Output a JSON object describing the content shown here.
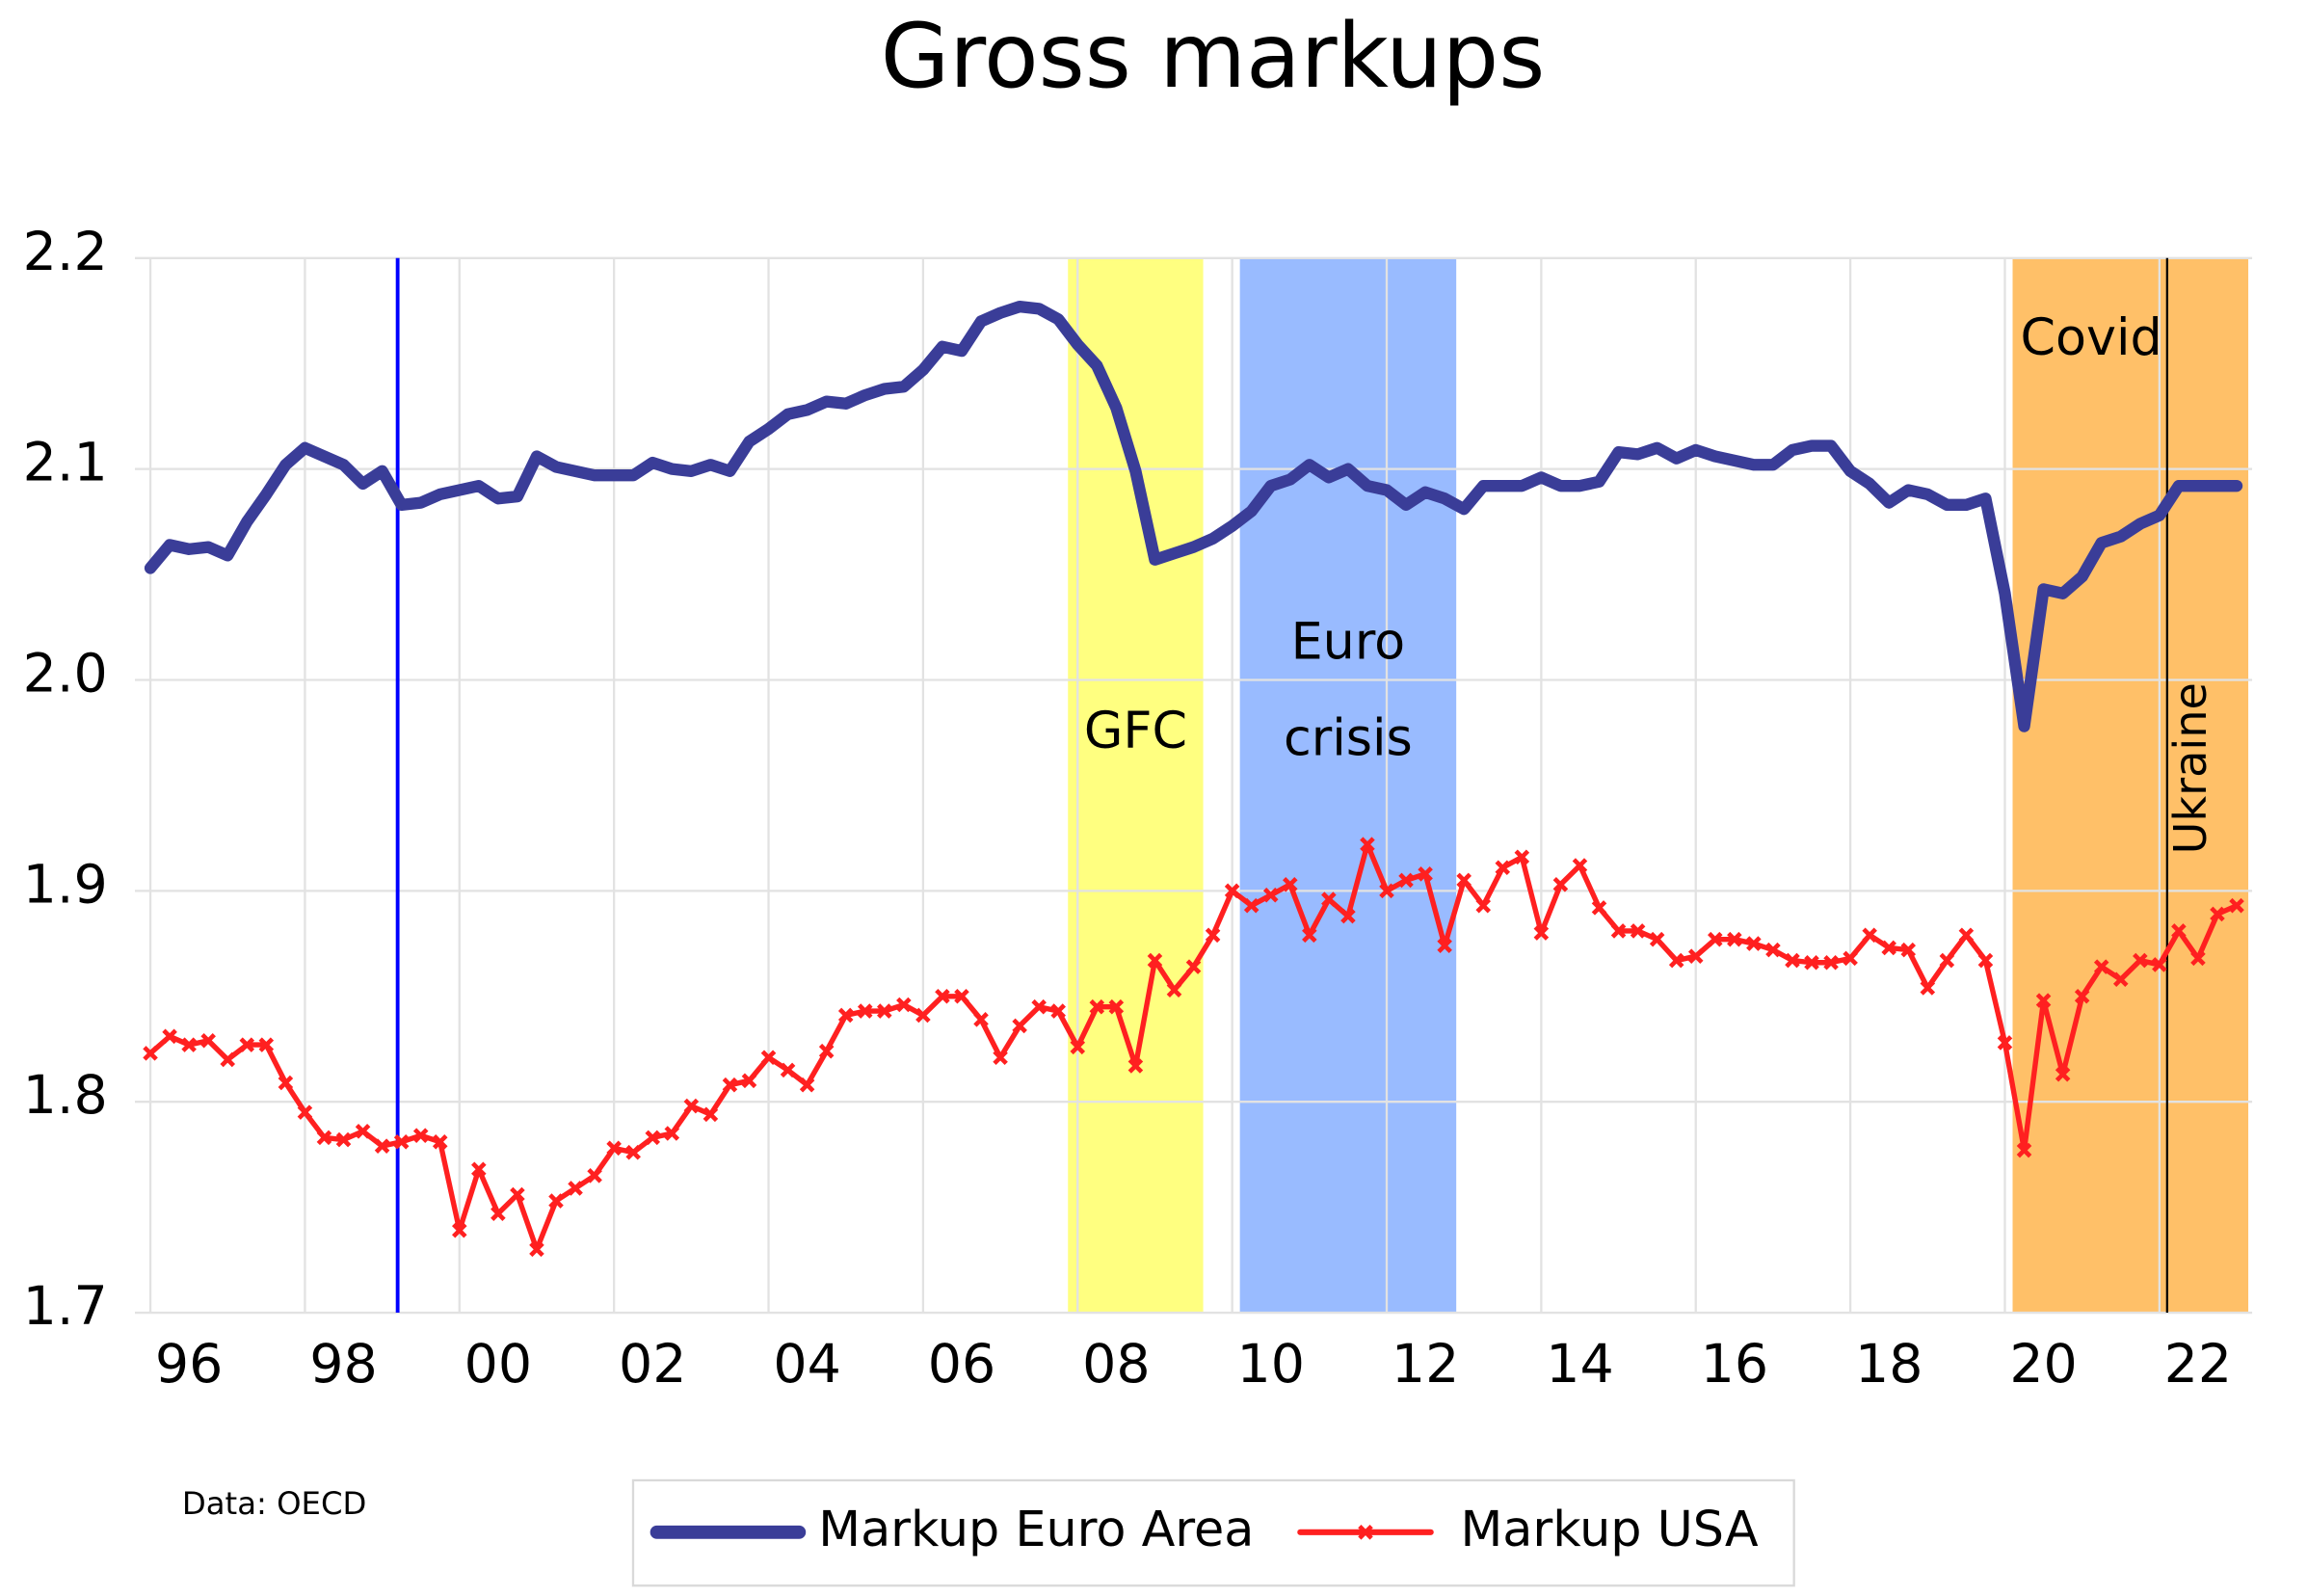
{
  "chart_data": {
    "type": "line",
    "title": "Gross markups",
    "source": "Data: OECD",
    "x": [
      1996,
      1996.25,
      1996.5,
      1996.75,
      1997,
      1997.25,
      1997.5,
      1997.75,
      1998,
      1998.25,
      1998.5,
      1998.75,
      1999,
      1999.25,
      1999.5,
      1999.75,
      2000,
      2000.25,
      2000.5,
      2000.75,
      2001,
      2001.25,
      2001.5,
      2001.75,
      2002,
      2002.25,
      2002.5,
      2002.75,
      2003,
      2003.25,
      2003.5,
      2003.75,
      2004,
      2004.25,
      2004.5,
      2004.75,
      2005,
      2005.25,
      2005.5,
      2005.75,
      2006,
      2006.25,
      2006.5,
      2006.75,
      2007,
      2007.25,
      2007.5,
      2007.75,
      2008,
      2008.25,
      2008.5,
      2008.75,
      2009,
      2009.25,
      2009.5,
      2009.75,
      2010,
      2010.25,
      2010.5,
      2010.75,
      2011,
      2011.25,
      2011.5,
      2011.75,
      2012,
      2012.25,
      2012.5,
      2012.75,
      2013,
      2013.25,
      2013.5,
      2013.75,
      2014,
      2014.25,
      2014.5,
      2014.75,
      2015,
      2015.25,
      2015.5,
      2015.75,
      2016,
      2016.25,
      2016.5,
      2016.75,
      2017,
      2017.25,
      2017.5,
      2017.75,
      2018,
      2018.25,
      2018.5,
      2018.75,
      2019,
      2019.25,
      2019.5,
      2019.75,
      2020,
      2020.25,
      2020.5,
      2020.75,
      2021,
      2021.25,
      2021.5,
      2021.75,
      2022,
      2022.25,
      2022.5,
      2022.75,
      2023
    ],
    "series": [
      {
        "name": "Markup Euro Area",
        "color": "#3a3d98",
        "values": [
          2.053,
          2.064,
          2.062,
          2.063,
          2.059,
          2.075,
          2.088,
          2.102,
          2.11,
          2.106,
          2.102,
          2.093,
          2.099,
          2.083,
          2.084,
          2.088,
          2.09,
          2.092,
          2.086,
          2.087,
          2.106,
          2.101,
          2.099,
          2.097,
          2.097,
          2.097,
          2.103,
          2.1,
          2.099,
          2.102,
          2.099,
          2.113,
          2.119,
          2.126,
          2.128,
          2.132,
          2.131,
          2.135,
          2.138,
          2.139,
          2.147,
          2.158,
          2.156,
          2.17,
          2.174,
          2.177,
          2.176,
          2.171,
          2.159,
          2.149,
          2.129,
          2.099,
          2.057,
          2.06,
          2.063,
          2.067,
          2.073,
          2.08,
          2.092,
          2.095,
          2.102,
          2.096,
          2.1,
          2.092,
          2.09,
          2.083,
          2.089,
          2.086,
          2.081,
          2.092,
          2.092,
          2.092,
          2.096,
          2.092,
          2.092,
          2.094,
          2.108,
          2.107,
          2.11,
          2.105,
          2.109,
          2.106,
          2.104,
          2.102,
          2.102,
          2.109,
          2.111,
          2.111,
          2.099,
          2.093,
          2.084,
          2.09,
          2.088,
          2.083,
          2.083,
          2.086,
          2.041,
          1.978,
          2.043,
          2.041,
          2.049,
          2.065,
          2.068,
          2.074,
          2.078,
          2.092,
          2.092,
          2.092,
          2.092
        ]
      },
      {
        "name": "Markup USA",
        "color": "#ff2020",
        "marker": "x",
        "values": [
          1.823,
          1.831,
          1.827,
          1.829,
          1.82,
          1.827,
          1.827,
          1.809,
          1.795,
          1.783,
          1.782,
          1.786,
          1.779,
          1.781,
          1.784,
          1.781,
          1.739,
          1.768,
          1.747,
          1.756,
          1.73,
          1.753,
          1.759,
          1.765,
          1.778,
          1.776,
          1.783,
          1.785,
          1.798,
          1.794,
          1.808,
          1.81,
          1.821,
          1.815,
          1.808,
          1.824,
          1.841,
          1.843,
          1.843,
          1.846,
          1.841,
          1.85,
          1.85,
          1.839,
          1.821,
          1.836,
          1.845,
          1.843,
          1.826,
          1.845,
          1.845,
          1.817,
          1.867,
          1.853,
          1.864,
          1.879,
          1.9,
          1.893,
          1.898,
          1.903,
          1.879,
          1.896,
          1.888,
          1.922,
          1.9,
          1.905,
          1.908,
          1.874,
          1.905,
          1.893,
          1.911,
          1.916,
          1.88,
          1.903,
          1.912,
          1.892,
          1.881,
          1.881,
          1.877,
          1.867,
          1.869,
          1.877,
          1.877,
          1.875,
          1.872,
          1.867,
          1.866,
          1.866,
          1.868,
          1.879,
          1.873,
          1.872,
          1.854,
          1.867,
          1.879,
          1.867,
          1.828,
          1.777,
          1.848,
          1.813,
          1.85,
          1.864,
          1.858,
          1.867,
          1.865,
          1.881,
          1.868,
          1.889,
          1.893
        ]
      }
    ],
    "xlim": [
      1995.8,
      2023.2
    ],
    "xticks": [
      {
        "value": 1996,
        "label": "96"
      },
      {
        "value": 1998,
        "label": "98"
      },
      {
        "value": 2000,
        "label": "00"
      },
      {
        "value": 2002,
        "label": "02"
      },
      {
        "value": 2004,
        "label": "04"
      },
      {
        "value": 2006,
        "label": "06"
      },
      {
        "value": 2008,
        "label": "08"
      },
      {
        "value": 2010,
        "label": "10"
      },
      {
        "value": 2012,
        "label": "12"
      },
      {
        "value": 2014,
        "label": "14"
      },
      {
        "value": 2016,
        "label": "16"
      },
      {
        "value": 2018,
        "label": "18"
      },
      {
        "value": 2020,
        "label": "20"
      },
      {
        "value": 2022,
        "label": "22"
      }
    ],
    "ylim": [
      1.7,
      2.2
    ],
    "yticks": [
      1.7,
      1.8,
      1.9,
      {
        "value": 2,
        "label": "2.0"
      },
      2.1,
      2.2
    ],
    "grid": true,
    "legend": "bottom",
    "shaded_periods": [
      {
        "label": [
          "GFC"
        ],
        "start": 2007.875,
        "end": 2009.625,
        "color": "#ffff80"
      },
      {
        "label": [
          "Euro",
          "crisis"
        ],
        "start": 2010.1,
        "end": 2012.9,
        "color": "#99bbff"
      },
      {
        "label": [
          "Covid"
        ],
        "start": 2020.1,
        "end": 2023.15,
        "color": "#ffc068"
      }
    ],
    "vertical_lines": [
      {
        "x": 1999.2,
        "color": "#0000ff"
      },
      {
        "x": 2022.1,
        "color": "#000000",
        "label": "Ukraine"
      }
    ]
  }
}
